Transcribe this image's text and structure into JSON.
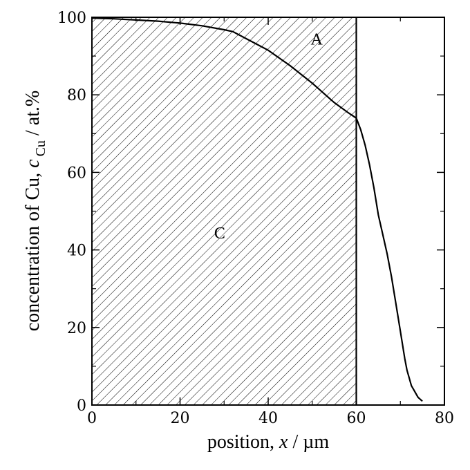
{
  "chart_data": {
    "type": "line",
    "xlabel": {
      "prefix": "position, ",
      "var": "x",
      "suffix": " / µm"
    },
    "ylabel": {
      "prefix": "concentration of Cu, ",
      "var": "c",
      "sub": "Cu",
      "suffix": " / at.%"
    },
    "xlim": [
      0,
      80
    ],
    "ylim": [
      0,
      100
    ],
    "x_ticks": [
      0,
      20,
      40,
      60,
      80
    ],
    "y_ticks": [
      0,
      20,
      40,
      60,
      80,
      100
    ],
    "grid": false,
    "hatched_region": {
      "x_from": 0,
      "x_to": 60,
      "y_from": 0,
      "y_to": 100
    },
    "series": [
      {
        "x": [
          0,
          5,
          10,
          15,
          20,
          25,
          30,
          32,
          35,
          40,
          45,
          50,
          55,
          58,
          60,
          61,
          62,
          63,
          64,
          65,
          66,
          67,
          68,
          69,
          70,
          71,
          71.5,
          72,
          72.5,
          73,
          74,
          75
        ],
        "y": [
          99.8,
          99.6,
          99.3,
          99.0,
          98.5,
          97.8,
          96.8,
          96.3,
          94.5,
          91.5,
          87.5,
          83,
          78,
          75.5,
          74,
          71,
          67,
          62,
          56,
          49,
          44,
          39,
          33,
          26,
          19,
          12,
          9,
          7,
          5,
          4,
          2,
          1
        ]
      }
    ],
    "annotations": [
      {
        "text": "A",
        "x": 51,
        "y": 93
      },
      {
        "text": "C",
        "x": 29,
        "y": 43
      }
    ]
  }
}
